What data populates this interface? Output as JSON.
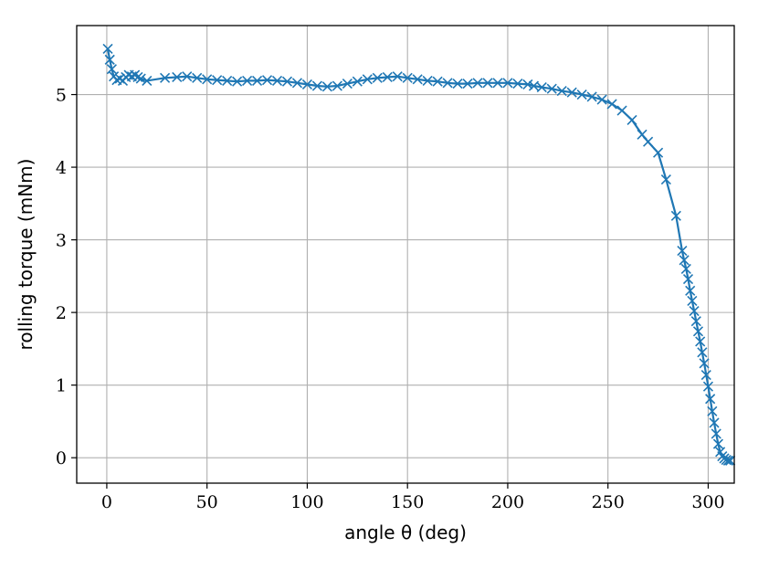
{
  "chart_data": {
    "type": "line",
    "title": "",
    "xlabel": "angle θ (deg)",
    "ylabel": "rolling torque (mNm)",
    "xlim": [
      -15,
      313
    ],
    "ylim": [
      -0.35,
      5.95
    ],
    "xticks": [
      0,
      50,
      100,
      150,
      200,
      250,
      300
    ],
    "yticks": [
      0,
      1,
      2,
      3,
      4,
      5
    ],
    "xtick_labels": [
      "0",
      "50",
      "100",
      "150",
      "200",
      "250",
      "300"
    ],
    "ytick_labels": [
      "0",
      "1",
      "2",
      "3",
      "4",
      "5"
    ],
    "grid": true,
    "color": "#1f77b4",
    "marker": "x",
    "series": [
      {
        "x": [
          0.5,
          1.5,
          2.5,
          3.5,
          5,
          6.5,
          8,
          9.5,
          11,
          12.5,
          14,
          15.5,
          17,
          20,
          29,
          35,
          40,
          45,
          50,
          55,
          60,
          65,
          70,
          75,
          80,
          85,
          90,
          95,
          100,
          105,
          110,
          115,
          120,
          125,
          130,
          135,
          140,
          145,
          150,
          155,
          160,
          165,
          170,
          175,
          180,
          185,
          190,
          195,
          200,
          205,
          210,
          213,
          217,
          222,
          227,
          232,
          237,
          242,
          247,
          252,
          257,
          262,
          267,
          270,
          275,
          279,
          284,
          287,
          288,
          289,
          290,
          291,
          292,
          293,
          294,
          295,
          296,
          297,
          298,
          299,
          300,
          301,
          302,
          303,
          304,
          305,
          306,
          307,
          308,
          309,
          310,
          311
        ],
        "y": [
          5.63,
          5.48,
          5.35,
          5.25,
          5.2,
          5.22,
          5.19,
          5.24,
          5.27,
          5.25,
          5.27,
          5.24,
          5.22,
          5.19,
          5.23,
          5.24,
          5.25,
          5.23,
          5.21,
          5.2,
          5.19,
          5.18,
          5.19,
          5.19,
          5.2,
          5.19,
          5.18,
          5.16,
          5.14,
          5.12,
          5.11,
          5.12,
          5.15,
          5.18,
          5.21,
          5.23,
          5.24,
          5.25,
          5.23,
          5.21,
          5.19,
          5.18,
          5.16,
          5.15,
          5.15,
          5.16,
          5.16,
          5.16,
          5.16,
          5.15,
          5.14,
          5.12,
          5.1,
          5.08,
          5.05,
          5.03,
          5.0,
          4.97,
          4.93,
          4.87,
          4.78,
          4.65,
          4.45,
          4.35,
          4.2,
          3.83,
          3.33,
          2.85,
          2.72,
          2.6,
          2.46,
          2.3,
          2.16,
          2.02,
          1.88,
          1.74,
          1.6,
          1.45,
          1.3,
          1.14,
          0.98,
          0.81,
          0.64,
          0.48,
          0.33,
          0.19,
          0.08,
          0.02,
          -0.01,
          -0.03,
          -0.04,
          -0.04
        ]
      }
    ]
  }
}
